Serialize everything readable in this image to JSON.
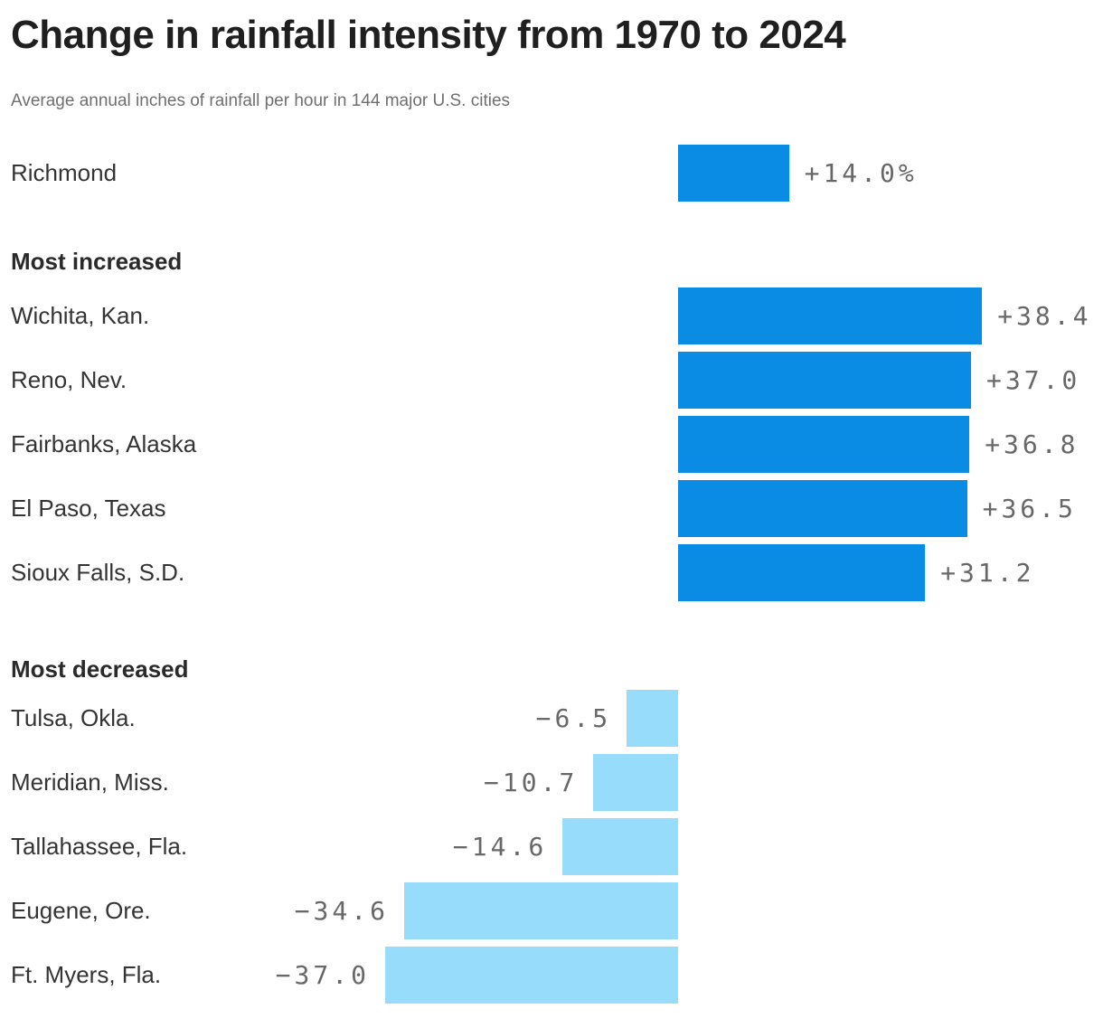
{
  "header": {
    "title": "Change in rainfall intensity from 1970 to 2024",
    "subtitle": "Average annual inches of rainfall per hour in 144 major U.S. cities"
  },
  "chart_data": {
    "type": "bar",
    "orientation": "horizontal",
    "title": "Change in rainfall intensity from 1970 to 2024",
    "subtitle": "Average annual inches of rainfall per hour in 144 major U.S. cities",
    "value_unit": "percent",
    "baseline": 0,
    "xlim": [
      -37.0,
      38.4
    ],
    "grid": false,
    "colors": {
      "positive_bar": "#0b8ce4",
      "negative_bar": "#97dcfb",
      "value_text": "#686868",
      "label_text": "#343434"
    },
    "sections": [
      {
        "heading": "",
        "items": [
          {
            "label": "Richmond",
            "value": 14.0,
            "display": "+14.0%"
          }
        ]
      },
      {
        "heading": "Most increased",
        "items": [
          {
            "label": "Wichita, Kan.",
            "value": 38.4,
            "display": "+38.4"
          },
          {
            "label": "Reno, Nev.",
            "value": 37.0,
            "display": "+37.0"
          },
          {
            "label": "Fairbanks, Alaska",
            "value": 36.8,
            "display": "+36.8"
          },
          {
            "label": "El Paso, Texas",
            "value": 36.5,
            "display": "+36.5"
          },
          {
            "label": "Sioux Falls, S.D.",
            "value": 31.2,
            "display": "+31.2"
          }
        ]
      },
      {
        "heading": "Most decreased",
        "items": [
          {
            "label": "Tulsa, Okla.",
            "value": -6.5,
            "display": "−6.5"
          },
          {
            "label": "Meridian, Miss.",
            "value": -10.7,
            "display": "−10.7"
          },
          {
            "label": "Tallahassee, Fla.",
            "value": -14.6,
            "display": "−14.6"
          },
          {
            "label": "Eugene, Ore.",
            "value": -34.6,
            "display": "−34.6"
          },
          {
            "label": "Ft. Myers, Fla.",
            "value": -37.0,
            "display": "−37.0"
          }
        ]
      }
    ]
  }
}
